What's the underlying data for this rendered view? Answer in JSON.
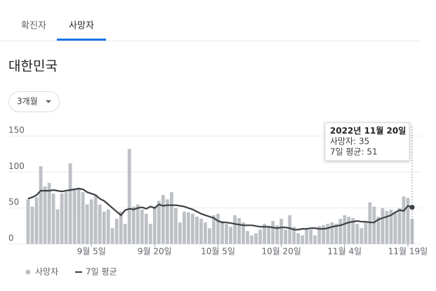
{
  "tabs": [
    "확진자",
    "사망자"
  ],
  "active_tab": 1,
  "region": "대한민국",
  "range_button": "3개월",
  "tooltip": {
    "date": "2022년 11월 20일",
    "lines": [
      "사망자: 35",
      "7일 평균: 51"
    ]
  },
  "chart_data": {
    "type": "bar_line",
    "categories": [
      null,
      null,
      null,
      null,
      null,
      null,
      null,
      null,
      null,
      null,
      null,
      null,
      null,
      null,
      null,
      "9월 5일",
      null,
      null,
      null,
      null,
      null,
      null,
      null,
      null,
      null,
      null,
      null,
      null,
      null,
      null,
      "9월 20일",
      null,
      null,
      null,
      null,
      null,
      null,
      null,
      null,
      null,
      null,
      null,
      null,
      null,
      null,
      "10월 5일",
      null,
      null,
      null,
      null,
      null,
      null,
      null,
      null,
      null,
      null,
      null,
      null,
      null,
      null,
      "10월 20일",
      null,
      null,
      null,
      null,
      null,
      null,
      null,
      null,
      null,
      null,
      null,
      null,
      null,
      null,
      "11월 4일",
      null,
      null,
      null,
      null,
      null,
      null,
      null,
      null,
      null,
      null,
      null,
      null,
      null,
      null,
      "11월 19일",
      null
    ],
    "series": [
      {
        "name": "사망자",
        "color": "#bdc1c6",
        "kind": "bar",
        "values": [
          62,
          52,
          65,
          108,
          80,
          85,
          70,
          48,
          70,
          72,
          112,
          75,
          78,
          72,
          55,
          62,
          68,
          55,
          45,
          48,
          22,
          35,
          45,
          28,
          132,
          52,
          55,
          48,
          42,
          28,
          52,
          60,
          68,
          62,
          72,
          50,
          30,
          45,
          44,
          42,
          38,
          35,
          30,
          22,
          40,
          42,
          32,
          28,
          24,
          40,
          36,
          30,
          18,
          12,
          15,
          20,
          28,
          24,
          32,
          26,
          35,
          20,
          40,
          24,
          15,
          12,
          22,
          20,
          12,
          25,
          26,
          28,
          30,
          28,
          35,
          40,
          38,
          36,
          28,
          22,
          30,
          58,
          52,
          38,
          50,
          46,
          48,
          45,
          50,
          66,
          64,
          35
        ]
      },
      {
        "name": "7일 평균",
        "color": "#3c4043",
        "kind": "line",
        "values": [
          63,
          65,
          68,
          74,
          74,
          74,
          75,
          74,
          73,
          74,
          75,
          76,
          77,
          76,
          72,
          70,
          68,
          63,
          60,
          55,
          50,
          45,
          40,
          47,
          49,
          48,
          50,
          51,
          49,
          52,
          50,
          55,
          53,
          54,
          54,
          54,
          53,
          52,
          50,
          48,
          45,
          42,
          40,
          38,
          36,
          32,
          30,
          30,
          29,
          28,
          27,
          26,
          26,
          26,
          25,
          24,
          24,
          24,
          23,
          22,
          23,
          23,
          22,
          20,
          20,
          21,
          21,
          22,
          22,
          21,
          21,
          22,
          24,
          25,
          26,
          28,
          30,
          31,
          32,
          31,
          31,
          30,
          30,
          34,
          36,
          38,
          40,
          44,
          47,
          46,
          53,
          51
        ]
      }
    ],
    "ylim": [
      0,
      150
    ],
    "yticks": [
      0,
      50,
      100,
      150
    ],
    "grid": true
  }
}
